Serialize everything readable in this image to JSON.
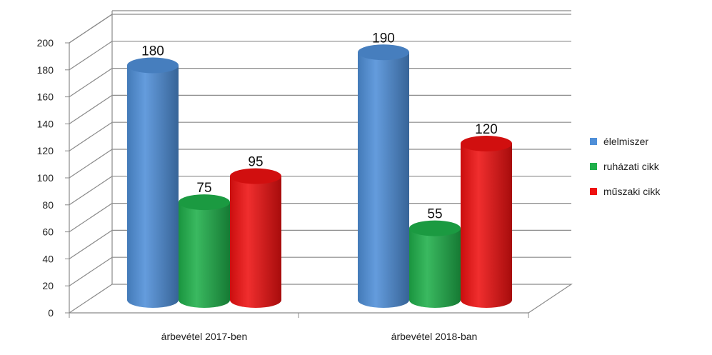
{
  "chart_data": {
    "type": "bar",
    "categories": [
      "árbevétel 2017-ben",
      "árbevétel 2018-ban"
    ],
    "series": [
      {
        "name": "élelmiszer",
        "values": [
          180,
          190
        ],
        "color": "#4f8fd8"
      },
      {
        "name": "ruházati cikk",
        "values": [
          75,
          55
        ],
        "color": "#1faf4a"
      },
      {
        "name": "műszaki cikk",
        "values": [
          95,
          120
        ],
        "color": "#ee1111"
      }
    ],
    "ylim": [
      0,
      200
    ],
    "yticks": [
      "0",
      "20",
      "40",
      "60",
      "80",
      "100",
      "120",
      "140",
      "160",
      "180",
      "200"
    ],
    "grid": true,
    "legend": "right",
    "style": "3d-cylinder"
  }
}
